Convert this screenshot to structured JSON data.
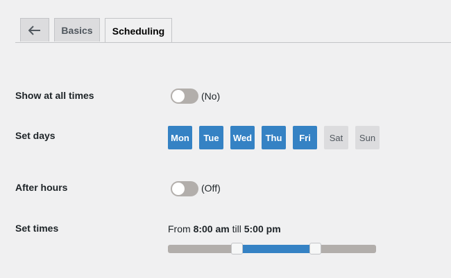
{
  "tabs": {
    "back_icon": "arrow-left-icon",
    "basics": "Basics",
    "scheduling": "Scheduling",
    "active": "Scheduling"
  },
  "show_all": {
    "label": "Show at all times",
    "state": "(No)",
    "on": false
  },
  "days": {
    "label": "Set days",
    "items": [
      {
        "label": "Mon",
        "selected": true
      },
      {
        "label": "Tue",
        "selected": true
      },
      {
        "label": "Wed",
        "selected": true
      },
      {
        "label": "Thu",
        "selected": true
      },
      {
        "label": "Fri",
        "selected": true
      },
      {
        "label": "Sat",
        "selected": false
      },
      {
        "label": "Sun",
        "selected": false
      }
    ]
  },
  "after_hours": {
    "label": "After hours",
    "state": "(Off)",
    "on": false
  },
  "times": {
    "label": "Set times",
    "from_prefix": "From",
    "from": "8:00 am",
    "till": "till",
    "to": "5:00 pm",
    "range_hours": [
      0,
      24
    ],
    "start_hour": 8,
    "end_hour": 17
  },
  "colors": {
    "accent": "#3582c4",
    "track": "#b2aeab"
  }
}
